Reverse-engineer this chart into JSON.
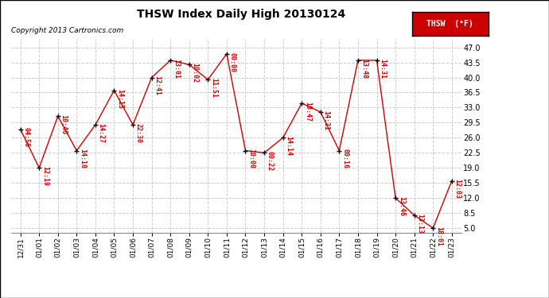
{
  "title": "THSW Index Daily High 20130124",
  "copyright": "Copyright 2013 Cartronics.com",
  "legend_label": "THSW  (°F)",
  "background_color": "#ffffff",
  "plot_bg_color": "#ffffff",
  "grid_color": "#cccccc",
  "line_color": "#cc0000",
  "marker_color": "#000000",
  "label_color": "#cc0000",
  "x_labels": [
    "12/31",
    "01/01",
    "01/02",
    "01/03",
    "01/04",
    "01/05",
    "01/06",
    "01/07",
    "01/08",
    "01/09",
    "01/10",
    "01/11",
    "01/12",
    "01/13",
    "01/14",
    "01/15",
    "01/16",
    "01/17",
    "01/18",
    "01/19",
    "01/20",
    "01/21",
    "01/22",
    "01/23"
  ],
  "y_values": [
    28.0,
    19.0,
    31.0,
    23.0,
    29.0,
    37.0,
    29.0,
    40.0,
    44.0,
    43.0,
    39.5,
    45.5,
    23.0,
    22.5,
    26.0,
    34.0,
    32.0,
    23.0,
    44.0,
    44.0,
    12.0,
    8.0,
    5.0,
    16.0
  ],
  "time_labels": [
    "04:56",
    "12:19",
    "10:46",
    "14:10",
    "14:27",
    "14:15",
    "22:30",
    "12:41",
    "13:01",
    "10:02",
    "11:51",
    "00:00",
    "10:00",
    "00:22",
    "14:14",
    "10:47",
    "14:21",
    "00:16",
    "13:48",
    "14:31",
    "13:46",
    "13:13",
    "18:01",
    "12:03"
  ],
  "yticks": [
    5.0,
    8.5,
    12.0,
    15.5,
    19.0,
    22.5,
    26.0,
    29.5,
    33.0,
    36.5,
    40.0,
    43.5,
    47.0
  ],
  "ylim": [
    4.0,
    49.0
  ],
  "xlim": [
    -0.5,
    23.5
  ],
  "figsize": [
    6.9,
    3.75
  ],
  "dpi": 100
}
